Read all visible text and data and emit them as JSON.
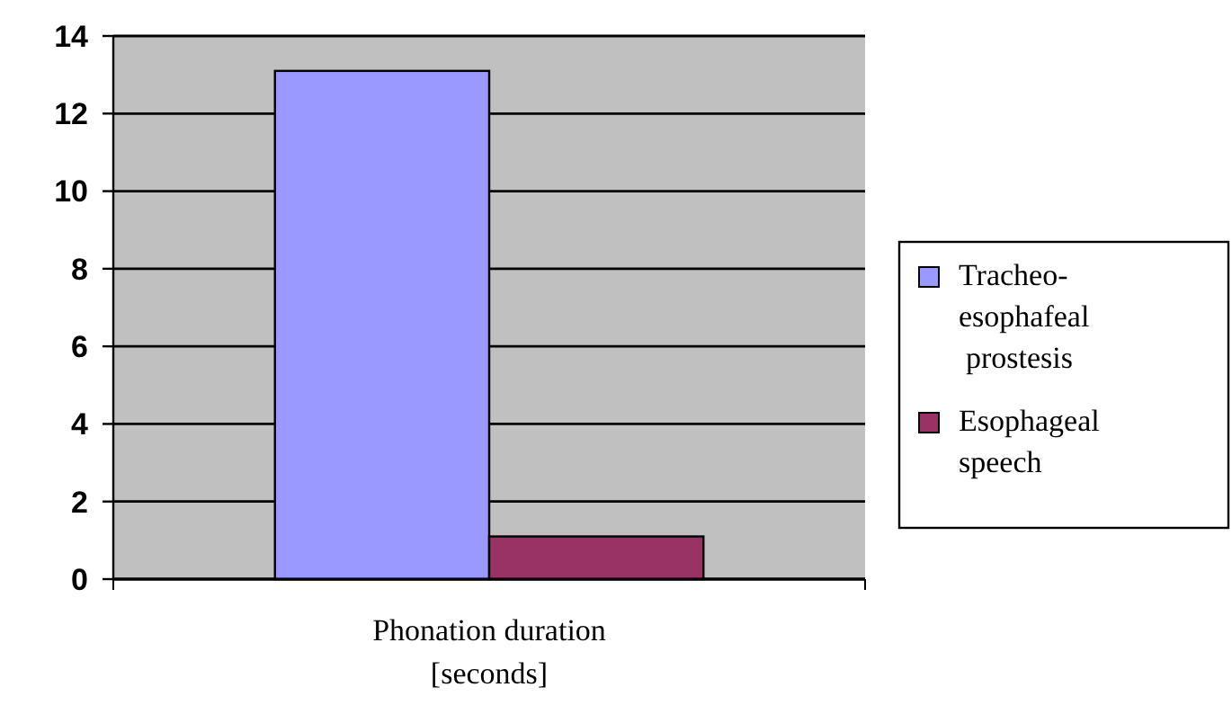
{
  "chart_data": {
    "type": "bar",
    "categories": [
      "Phonation duration [seconds]"
    ],
    "series": [
      {
        "name": "Tracheo-esophafeal prostesis",
        "color": "#9999ff",
        "values": [
          13.1
        ]
      },
      {
        "name": "Esophageal speech",
        "color": "#993366",
        "values": [
          1.1
        ]
      }
    ],
    "ylim": [
      0,
      14
    ],
    "yticks": [
      0,
      2,
      4,
      6,
      8,
      10,
      12,
      14
    ],
    "grid": "y",
    "legend": "right"
  }
}
